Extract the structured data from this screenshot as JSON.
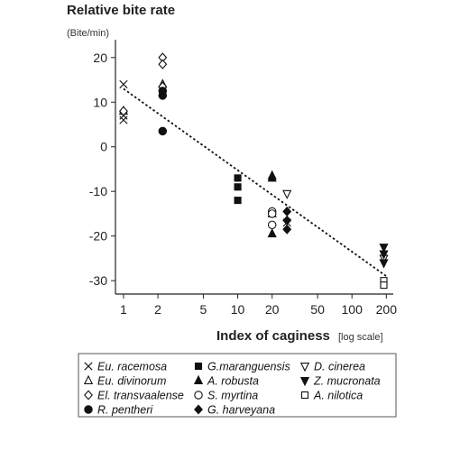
{
  "chart_data": {
    "type": "scatter",
    "ylabel": "Relative bite rate",
    "ylabel_unit": "(Bite/min)",
    "xlabel": "Index of caginess",
    "xlabel_unit": "[log scale]",
    "x_scale": "log",
    "xlim": [
      0.85,
      230
    ],
    "ylim": [
      -33,
      24
    ],
    "x_ticks": [
      1,
      2,
      5,
      10,
      20,
      50,
      100,
      200
    ],
    "y_ticks": [
      -30,
      -20,
      -10,
      0,
      10,
      20
    ],
    "grid": false,
    "legend_position": "bottom",
    "trendline": {
      "style": "dashed",
      "x": [
        1,
        200
      ],
      "y": [
        13,
        -29
      ]
    },
    "series": [
      {
        "name": "Eu. racemosa",
        "marker": "x",
        "points": [
          [
            1,
            14
          ],
          [
            1,
            7
          ],
          [
            1,
            6
          ],
          [
            27,
            -17
          ]
        ]
      },
      {
        "name": "Eu. divinorum",
        "marker": "triangle-up-open",
        "points": [
          [
            1,
            8
          ],
          [
            2.2,
            14
          ],
          [
            20,
            -15
          ]
        ]
      },
      {
        "name": "El. transvaalense",
        "marker": "diamond-open",
        "points": [
          [
            1,
            8
          ],
          [
            2.2,
            20
          ],
          [
            2.2,
            18.5
          ],
          [
            2.2,
            13.5
          ]
        ]
      },
      {
        "name": "R. pentheri",
        "marker": "circle-filled",
        "points": [
          [
            2.2,
            12.5
          ],
          [
            2.2,
            11.5
          ],
          [
            2.2,
            3.5
          ]
        ]
      },
      {
        "name": "G.maranguensis",
        "marker": "square-filled",
        "points": [
          [
            10,
            -7
          ],
          [
            10,
            -9
          ],
          [
            10,
            -12
          ]
        ]
      },
      {
        "name": "A. robusta",
        "marker": "triangle-up-filled",
        "points": [
          [
            20,
            -6.5
          ],
          [
            20,
            -7
          ],
          [
            20,
            -19.5
          ]
        ]
      },
      {
        "name": "S. myrtina",
        "marker": "circle-open",
        "points": [
          [
            20,
            -14.5
          ],
          [
            20,
            -15
          ],
          [
            20,
            -17.5
          ]
        ]
      },
      {
        "name": "G. harveyana",
        "marker": "diamond-filled",
        "points": [
          [
            27,
            -14.5
          ],
          [
            27,
            -16.5
          ],
          [
            27,
            -18.5
          ]
        ]
      },
      {
        "name": "D. cinerea",
        "marker": "triangle-down-open",
        "points": [
          [
            27,
            -10.5
          ],
          [
            190,
            -25
          ]
        ]
      },
      {
        "name": "Z. mucronata",
        "marker": "triangle-down-filled",
        "points": [
          [
            190,
            -22.5
          ],
          [
            190,
            -24
          ],
          [
            190,
            -26
          ]
        ]
      },
      {
        "name": "A. nilotica",
        "marker": "square-open",
        "points": [
          [
            190,
            -30
          ],
          [
            190,
            -31
          ]
        ]
      }
    ]
  },
  "legend": {
    "columns": [
      [
        "Eu. racemosa",
        "Eu. divinorum",
        "El. transvaalense",
        "R. pentheri"
      ],
      [
        "G.maranguensis",
        "A. robusta",
        "S. myrtina",
        "G. harveyana"
      ],
      [
        "D. cinerea",
        "Z. mucronata",
        "A. nilotica"
      ]
    ]
  }
}
